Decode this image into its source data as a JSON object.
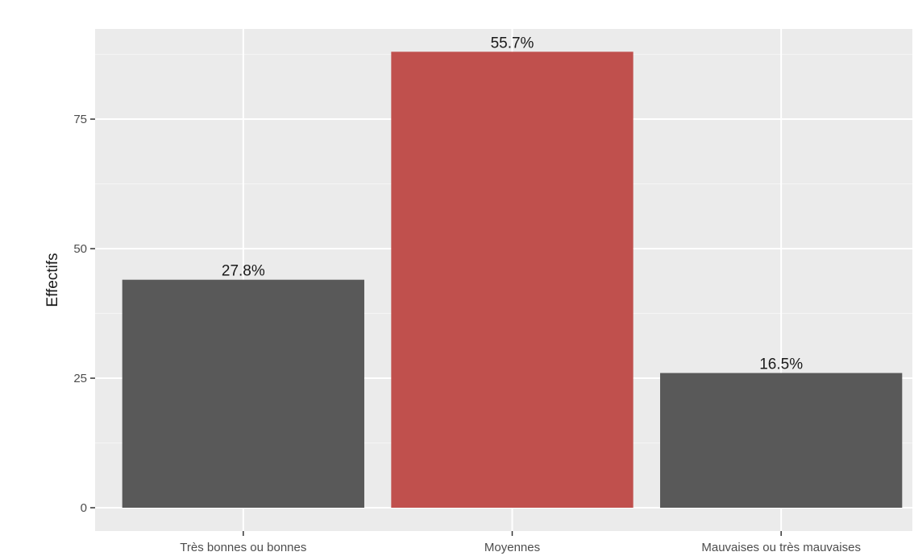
{
  "chart_data": {
    "type": "bar",
    "categories": [
      "Très bonnes ou bonnes",
      "Moyennes",
      "Mauvaises ou très mauvaises"
    ],
    "values": [
      44,
      88,
      26
    ],
    "value_labels": [
      "27.8%",
      "55.7%",
      "16.5%"
    ],
    "title": "",
    "xlabel": "",
    "ylabel": "Effectifs",
    "ylim": [
      0,
      92.4
    ],
    "yticks": [
      0,
      25,
      50,
      75
    ],
    "ytick_labels": [
      "0",
      "25",
      "50",
      "75"
    ],
    "grid": true,
    "legend": "none",
    "colors": {
      "panel_background": "#ebebeb",
      "grid_major": "#ffffff",
      "bar_default": "#595959",
      "bar_highlight": "#c0504d"
    },
    "highlight_index": 1
  }
}
